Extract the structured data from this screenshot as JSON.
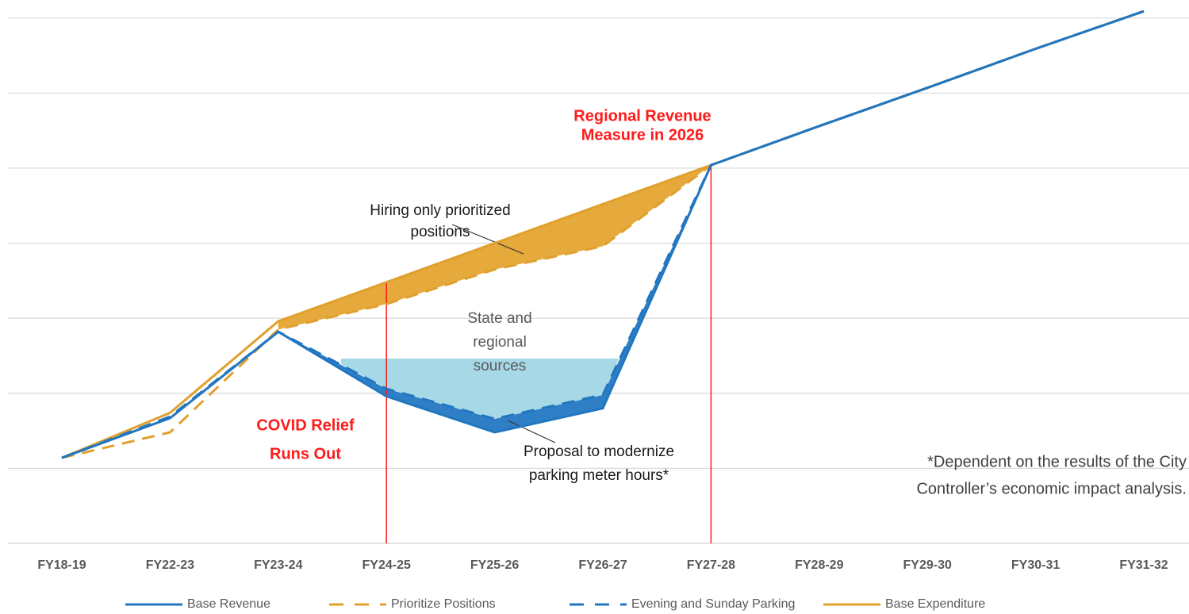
{
  "chart_data": {
    "type": "line",
    "categories": [
      "FY18-19",
      "FY22-23",
      "FY23-24",
      "FY24-25",
      "FY25-26",
      "FY26-27",
      "FY27-28",
      "FY28-29",
      "FY29-30",
      "FY30-31",
      "FY31-32"
    ],
    "series": [
      {
        "name": "Base Revenue",
        "color": "#2176c0",
        "dash": false,
        "values": [
          1.14,
          1.67,
          2.82,
          1.96,
          1.48,
          1.8,
          5.04,
          5.56,
          6.07,
          6.59,
          7.09
        ]
      },
      {
        "name": "Prioritize Positions",
        "color": "#e0a02e",
        "dash": true,
        "values": [
          1.14,
          1.48,
          2.85,
          3.19,
          3.65,
          3.96,
          5.04,
          5.56,
          6.07,
          6.59,
          7.09
        ]
      },
      {
        "name": "Evening and Sunday Parking",
        "color": "#2176c0",
        "dash": true,
        "values": [
          1.14,
          1.69,
          2.82,
          2.06,
          1.66,
          1.98,
          5.04,
          5.56,
          6.07,
          6.59,
          7.09
        ]
      },
      {
        "name": "Base Expenditure",
        "color": "#e0a02e",
        "dash": false,
        "values": [
          1.14,
          1.74,
          2.96,
          3.48,
          4.0,
          4.52,
          5.04,
          5.56,
          6.07,
          6.59,
          7.09
        ]
      }
    ],
    "ylim": [
      0,
      7.24
    ],
    "yticks": [
      0,
      1,
      2,
      3,
      4,
      5,
      6,
      7
    ],
    "grid": true,
    "annotations": [
      {
        "lines": [
          "Regional Revenue",
          "Measure in 2026"
        ]
      },
      {
        "lines": [
          "Hiring only prioritized",
          "positions"
        ]
      },
      {
        "lines": [
          "State and",
          "regional",
          "sources"
        ]
      },
      {
        "lines": [
          "COVID Relief",
          "Runs Out"
        ]
      },
      {
        "lines": [
          "Proposal to modernize",
          "parking meter hours*"
        ]
      }
    ],
    "footnote": [
      "*Dependent on the results of the City",
      "Controller’s economic impact analysis."
    ]
  }
}
